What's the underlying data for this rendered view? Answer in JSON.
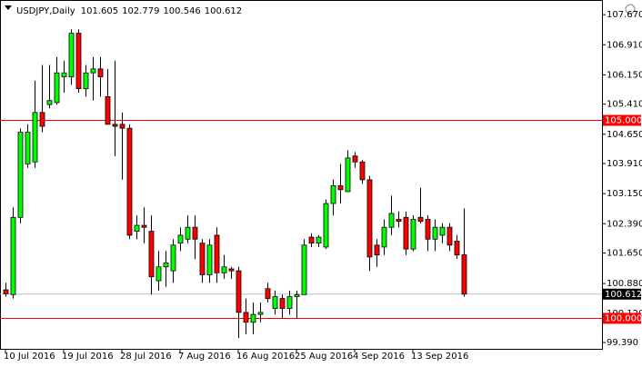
{
  "chart_data": {
    "type": "candlestick",
    "symbol": "USDJPY,Daily",
    "header_values": [
      101.605,
      102.779,
      100.546,
      100.612
    ],
    "categories": [
      "10 Jul 2016",
      null,
      null,
      null,
      null,
      null,
      null,
      null,
      "19 Jul 2016",
      null,
      null,
      null,
      null,
      null,
      null,
      null,
      "28 Jul 2016",
      null,
      null,
      null,
      null,
      null,
      null,
      null,
      "7 Aug 2016",
      null,
      null,
      null,
      null,
      null,
      null,
      null,
      "16 Aug 2016",
      null,
      null,
      null,
      null,
      null,
      null,
      null,
      "25 Aug 2016",
      null,
      null,
      null,
      null,
      null,
      null,
      null,
      "4 Sep 2016",
      null,
      null,
      null,
      null,
      null,
      null,
      null,
      "13 Sep 2016",
      null,
      null,
      null,
      null,
      null,
      null,
      null
    ],
    "open": [
      100.72,
      100.6,
      102.55,
      103.9,
      103.95,
      105.2,
      105.4,
      105.45,
      106.1,
      106.1,
      107.2,
      105.8,
      106.2,
      106.3,
      105.6,
      104.9,
      104.9,
      104.8,
      102.2,
      102.35,
      102.2,
      100.95,
      101.3,
      101.2,
      101.9,
      102.0,
      102.3,
      101.9,
      101.1,
      102.1,
      101.15,
      101.25,
      101.2,
      100.15,
      99.9,
      100.1,
      100.75,
      100.25,
      100.5,
      100.25,
      100.55,
      100.6,
      102.05,
      101.9,
      101.8,
      102.9,
      103.35,
      103.2,
      104.1,
      103.95,
      103.5,
      101.85,
      101.8,
      102.3,
      102.5,
      102.55,
      101.75,
      102.55,
      102.5,
      102.0,
      102.1,
      102.3,
      101.95,
      101.605
    ],
    "high": [
      100.9,
      102.8,
      104.8,
      104.9,
      106.0,
      106.4,
      106.4,
      106.6,
      106.5,
      107.3,
      107.3,
      106.4,
      106.6,
      106.6,
      106.3,
      106.5,
      105.2,
      104.9,
      102.6,
      102.8,
      102.6,
      101.7,
      101.7,
      102.0,
      102.3,
      102.6,
      102.6,
      102.0,
      102.0,
      102.3,
      101.6,
      101.3,
      101.3,
      100.5,
      100.4,
      100.4,
      100.9,
      100.7,
      100.6,
      100.7,
      100.7,
      102.0,
      102.15,
      102.1,
      103.0,
      103.5,
      103.9,
      104.25,
      104.2,
      104.0,
      103.6,
      102.0,
      102.5,
      103.1,
      102.7,
      102.7,
      102.6,
      103.3,
      102.6,
      102.5,
      102.4,
      102.4,
      102.1,
      102.779
    ],
    "low": [
      100.55,
      100.5,
      102.4,
      103.8,
      103.8,
      104.7,
      105.3,
      105.4,
      105.7,
      105.9,
      105.7,
      105.6,
      105.5,
      105.6,
      104.9,
      104.1,
      103.5,
      102.0,
      102.0,
      101.9,
      100.6,
      100.7,
      100.8,
      100.9,
      101.7,
      101.9,
      101.5,
      100.9,
      100.9,
      100.9,
      101.0,
      101.0,
      99.5,
      99.6,
      99.6,
      99.9,
      100.4,
      100.1,
      100.0,
      100.1,
      100.0,
      100.6,
      101.8,
      101.8,
      101.75,
      102.6,
      102.9,
      103.2,
      103.8,
      103.4,
      101.2,
      101.3,
      101.6,
      102.1,
      102.3,
      101.6,
      101.7,
      102.4,
      101.7,
      101.7,
      101.9,
      101.7,
      101.5,
      100.546
    ],
    "close": [
      100.62,
      102.55,
      104.7,
      104.7,
      105.2,
      104.85,
      105.5,
      106.2,
      106.2,
      107.2,
      105.8,
      106.2,
      106.3,
      106.1,
      104.9,
      104.85,
      104.8,
      102.1,
      102.35,
      102.3,
      101.05,
      101.3,
      101.4,
      101.85,
      102.1,
      102.3,
      102.0,
      101.1,
      101.85,
      101.15,
      101.3,
      101.2,
      100.15,
      99.9,
      100.1,
      100.15,
      100.5,
      100.55,
      100.25,
      100.55,
      100.6,
      101.85,
      101.9,
      102.05,
      102.9,
      103.35,
      103.25,
      104.05,
      103.95,
      103.5,
      101.55,
      101.6,
      102.3,
      102.65,
      102.45,
      101.75,
      102.5,
      102.45,
      102.0,
      102.3,
      102.3,
      101.85,
      101.6,
      100.612
    ],
    "up_color": "#00ff00",
    "down_color": "#ff0000",
    "ylim": [
      99.23,
      108.04
    ],
    "yticks": [
      {
        "value": 107.67,
        "label": "107.670"
      },
      {
        "value": 106.91,
        "label": "106.910"
      },
      {
        "value": 106.15,
        "label": "106.150"
      },
      {
        "value": 105.41,
        "label": "105.410"
      },
      {
        "value": 104.65,
        "label": "104.650"
      },
      {
        "value": 103.91,
        "label": "103.910"
      },
      {
        "value": 103.15,
        "label": "103.150"
      },
      {
        "value": 102.39,
        "label": "102.390"
      },
      {
        "value": 101.65,
        "label": "101.650"
      },
      {
        "value": 100.88,
        "label": "100.880"
      },
      {
        "value": 100.12,
        "label": "100.120"
      },
      {
        "value": 99.39,
        "label": "99.390"
      }
    ],
    "hlines": [
      {
        "value": 105,
        "label": "105.000",
        "color": "#ff0000"
      },
      {
        "value": 100,
        "label": "100.000",
        "color": "#ff0000"
      },
      {
        "value": 100.612,
        "label": "100.612",
        "color": "#c0c0c0"
      }
    ]
  }
}
